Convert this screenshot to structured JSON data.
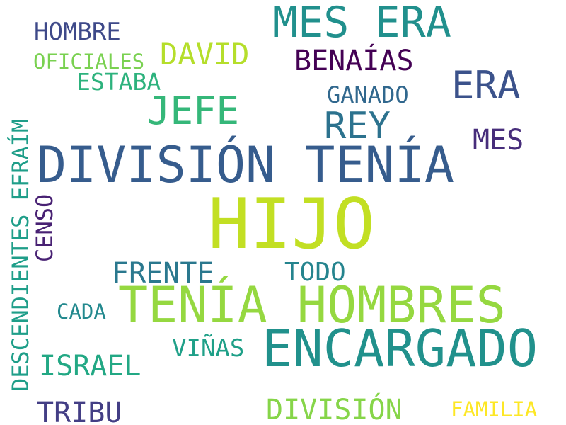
{
  "words": {
    "mes_era": {
      "text": "MES ERA",
      "color": "#21908d"
    },
    "hombre": {
      "text": "HOMBRE",
      "color": "#3e4989"
    },
    "david": {
      "text": "DAVID",
      "color": "#b5de2b"
    },
    "oficiales": {
      "text": "OFICIALES",
      "color": "#7ad151"
    },
    "benaias": {
      "text": "BENAÍAS",
      "color": "#440154"
    },
    "estaba": {
      "text": "ESTABA",
      "color": "#2db27d"
    },
    "era": {
      "text": "ERA",
      "color": "#3b528b"
    },
    "ganado": {
      "text": "GANADO",
      "color": "#31688e"
    },
    "jefe": {
      "text": "JEFE",
      "color": "#35b779"
    },
    "rey": {
      "text": "REY",
      "color": "#2c728e"
    },
    "mes": {
      "text": "MES",
      "color": "#472d7b"
    },
    "division_tenia": {
      "text": "DIVISIÓN TENÍA",
      "color": "#365c8d"
    },
    "descendientes_efraim": {
      "text": "DESCENDIENTES EFRAÍM",
      "color": "#1f9e89"
    },
    "censo": {
      "text": "CENSO",
      "color": "#482173"
    },
    "hijo": {
      "text": "HIJO",
      "color": "#c2df23"
    },
    "frente": {
      "text": "FRENTE",
      "color": "#2a788e"
    },
    "todo": {
      "text": "TODO",
      "color": "#25848e"
    },
    "tenia_hombres": {
      "text": "TENÍA HOMBRES",
      "color": "#95d840"
    },
    "cada": {
      "text": "CADA",
      "color": "#23898e"
    },
    "encargado": {
      "text": "ENCARGADO",
      "color": "#21918c"
    },
    "vinas": {
      "text": "VIÑAS",
      "color": "#1fa088"
    },
    "israel": {
      "text": "ISRAEL",
      "color": "#22a884"
    },
    "tribu": {
      "text": "TRIBU",
      "color": "#433e85"
    },
    "division": {
      "text": "DIVISIÓN",
      "color": "#86d549"
    },
    "familia": {
      "text": "FAMILIA",
      "color": "#fde725"
    }
  }
}
